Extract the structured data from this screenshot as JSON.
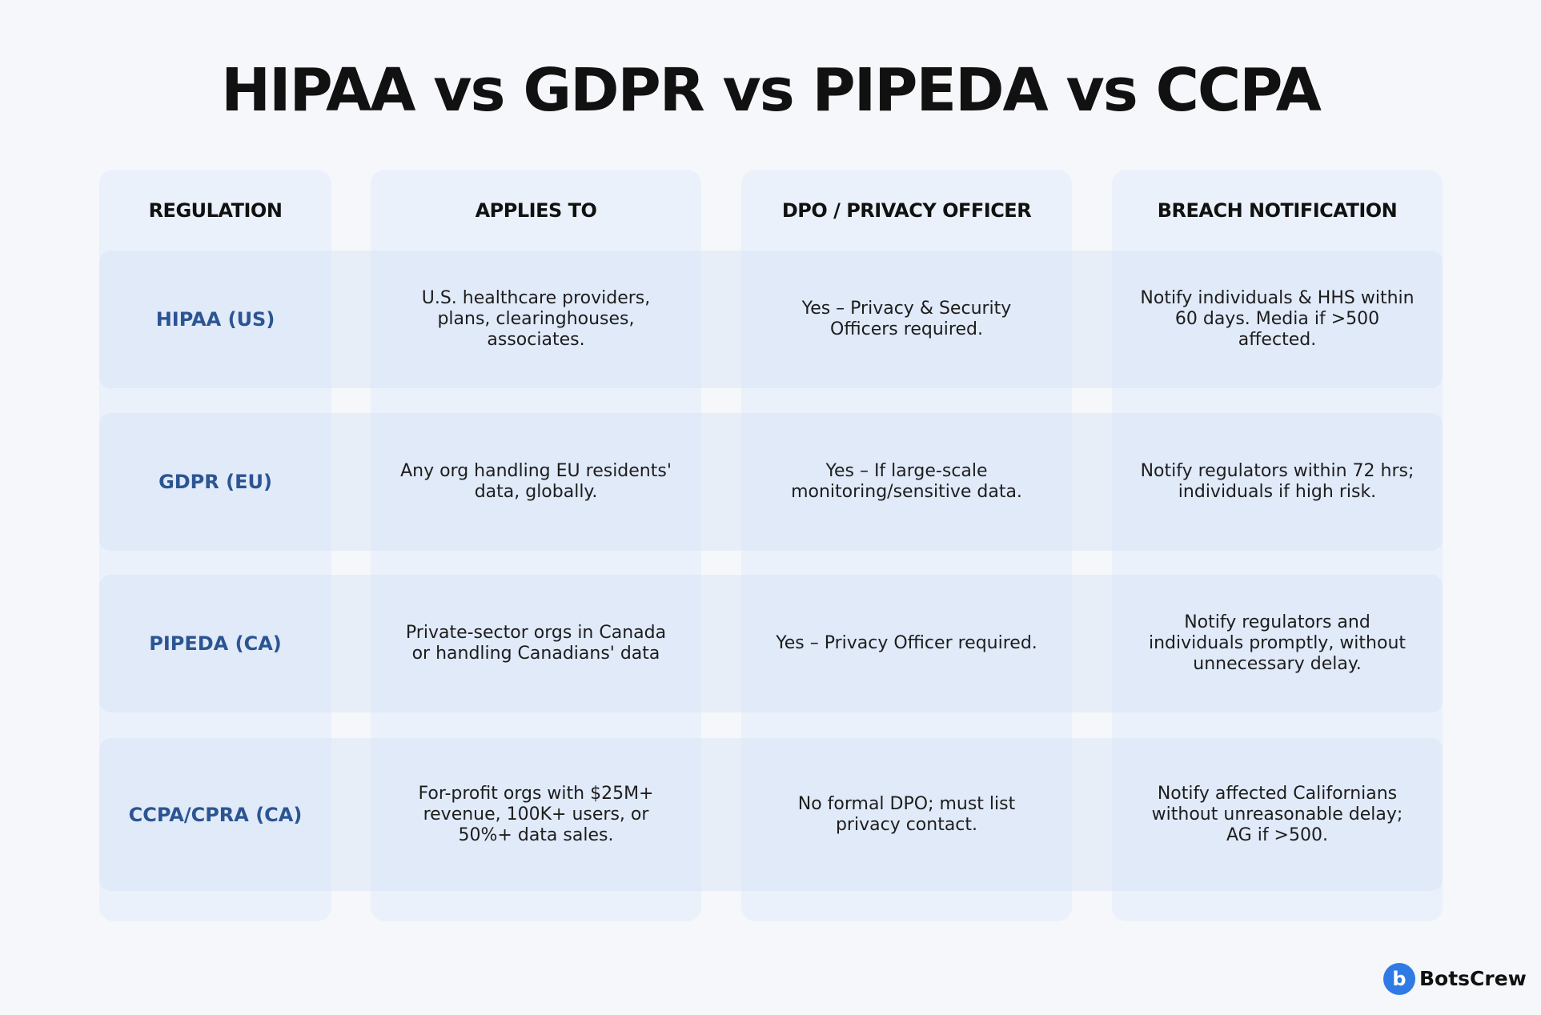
{
  "header": {
    "title": "HIPAA vs GDPR vs PIPEDA vs CCPA"
  },
  "table": {
    "columns": [
      "REGULATION",
      "APPLIES TO",
      "DPO / PRIVACY OFFICER",
      "BREACH NOTIFICATION"
    ],
    "rows": [
      [
        "HIPAA (US)",
        "U.S. healthcare providers, plans, clearinghouses, associates.",
        "Yes – Privacy & Security Officers required.",
        "Notify individuals & HHS within 60 days. Media if >500 affected."
      ],
      [
        "GDPR (EU)",
        "Any org handling EU residents' data, globally.",
        "Yes – If large-scale monitoring/sensitive data.",
        "Notify regulators within 72 hrs; individuals if high risk."
      ],
      [
        "PIPEDA (CA)",
        "Private-sector orgs in Canada or handling Canadians' data",
        "Yes – Privacy Officer required.",
        "Notify regulators and individuals promptly, without unnecessary delay."
      ],
      [
        "CCPA/CPRA (CA)",
        "For-profit orgs with $25M+ revenue, 100K+ users, or 50%+ data sales.",
        "No formal DPO; must list privacy contact.",
        "Notify affected Californians without unreasonable delay; AG if >500."
      ]
    ]
  },
  "logo": {
    "text": "BotsCrew"
  }
}
